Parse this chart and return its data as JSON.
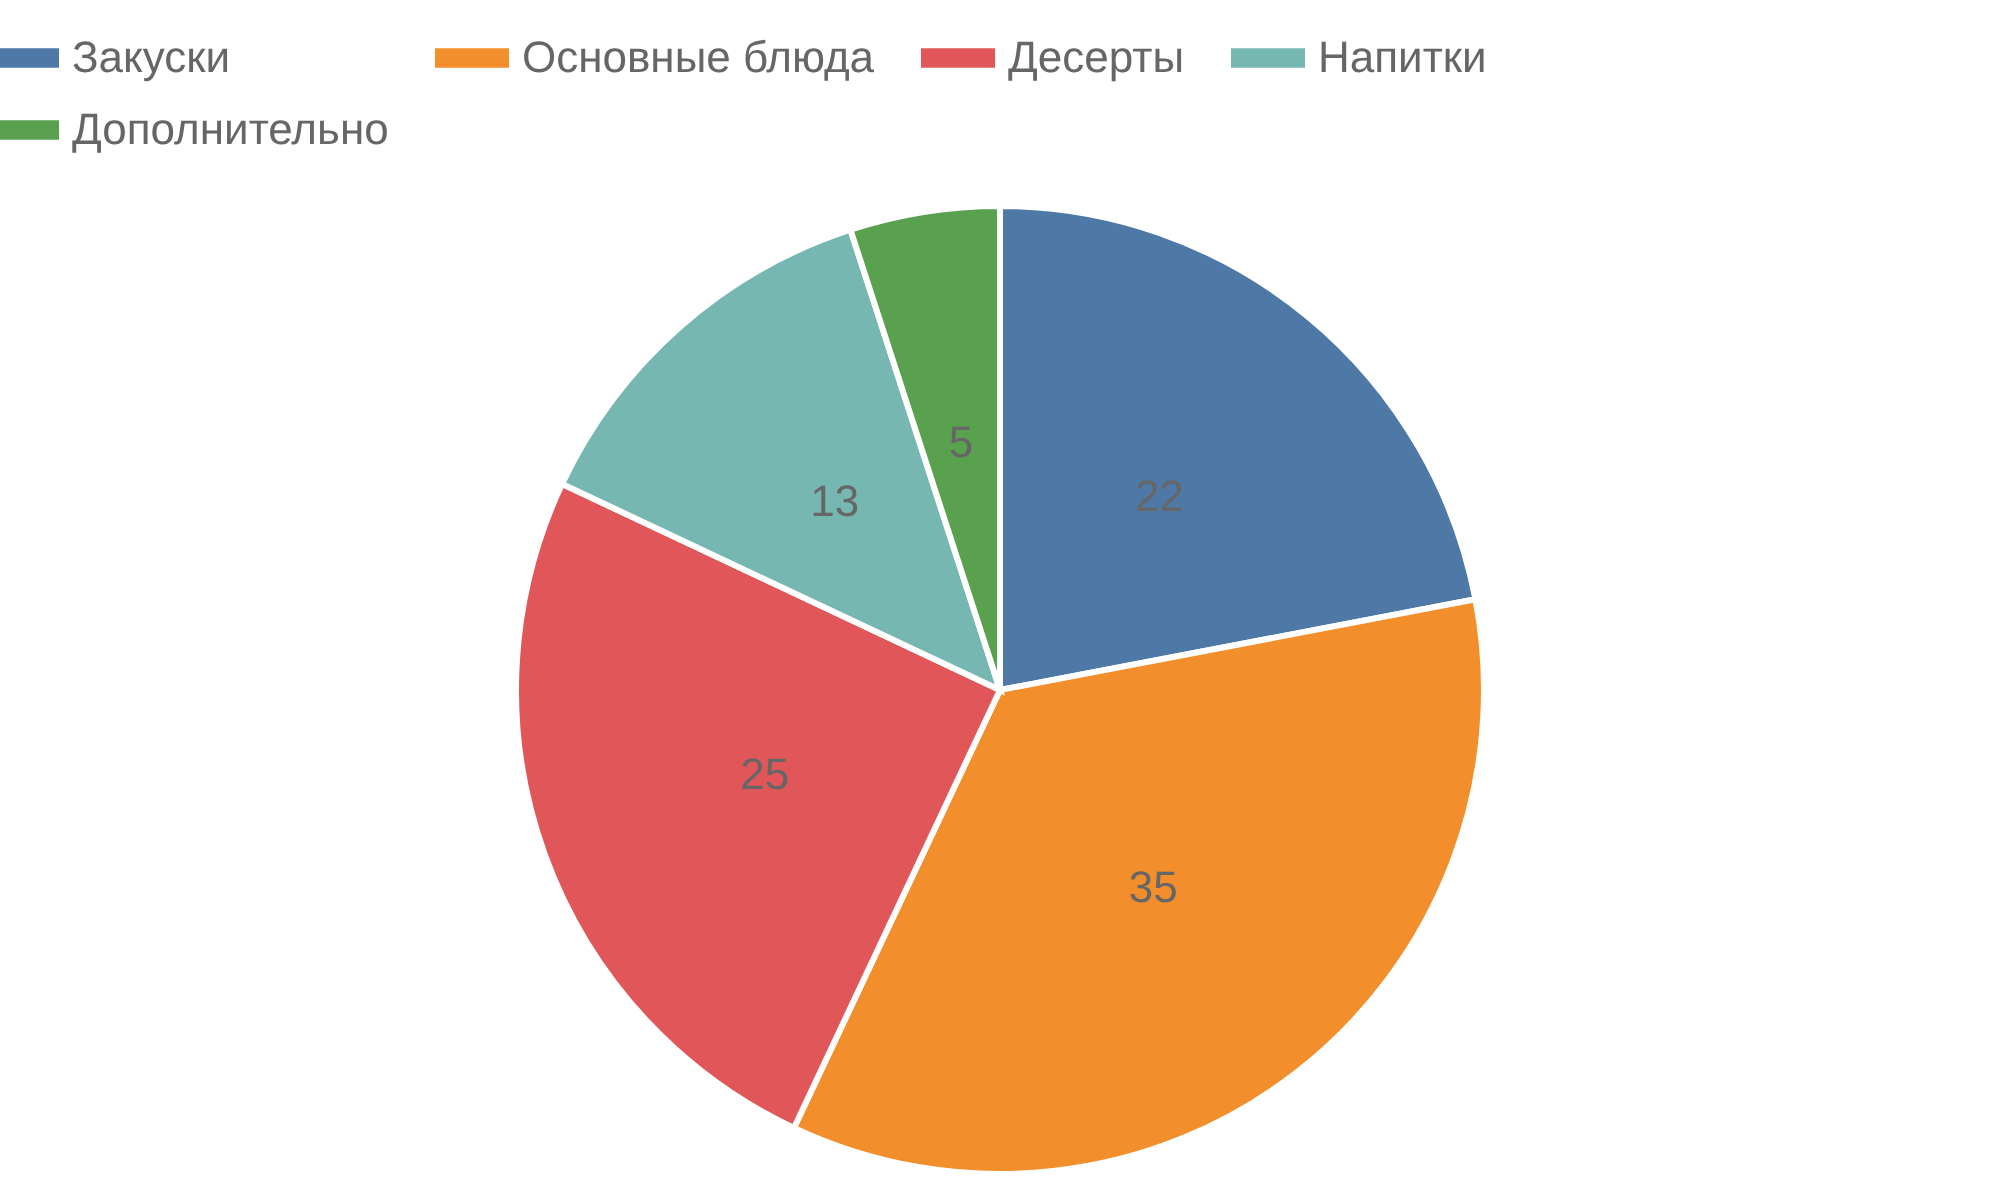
{
  "chart_data": {
    "type": "pie",
    "categories": [
      "Закуски",
      "Основные блюда",
      "Десерты",
      "Напитки",
      "Дополнительно"
    ],
    "values": [
      22,
      35,
      25,
      13,
      5
    ],
    "colors": [
      "#4e79a7",
      "#f28e2b",
      "#e15759",
      "#76b7b2",
      "#59a14f"
    ],
    "data_labels": true,
    "legend": "top"
  }
}
